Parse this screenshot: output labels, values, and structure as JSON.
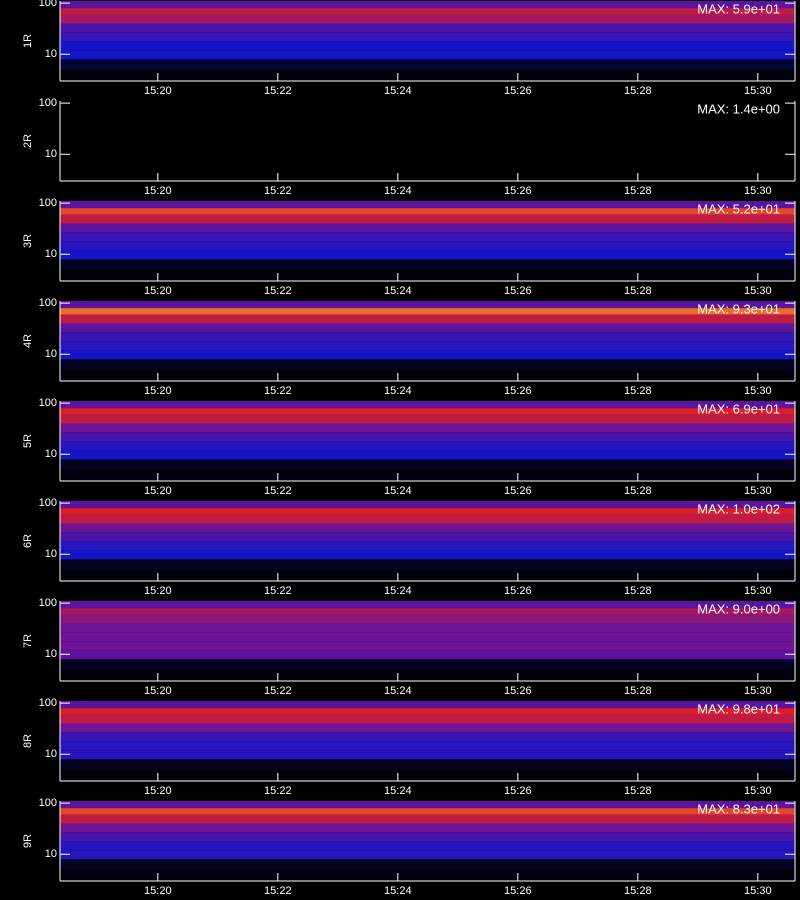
{
  "chart_data": [
    {
      "type": "heatmap",
      "ylabel": "1R",
      "annotation": "MAX: 5.9e+01",
      "log_y": true,
      "xlim": [
        18.37,
        30.62
      ],
      "ylim": [
        3,
        110
      ],
      "xticks": [
        {
          "value": 20,
          "label": "15:20"
        },
        {
          "value": 22,
          "label": "15:22"
        },
        {
          "value": 24,
          "label": "15:24"
        },
        {
          "value": 26,
          "label": "15:26"
        },
        {
          "value": 28,
          "label": "15:28"
        },
        {
          "value": 30,
          "label": "15:30"
        }
      ],
      "yticks": [
        10,
        100
      ],
      "y_bins": [
        3,
        5,
        8,
        12,
        18,
        27,
        40,
        60,
        80,
        110
      ],
      "values": [
        0.02,
        0.08,
        0.3,
        0.3,
        0.4,
        0.45,
        0.65,
        0.7,
        0.5
      ]
    },
    {
      "type": "heatmap",
      "ylabel": "2R",
      "annotation": "MAX: 1.4e+00",
      "log_y": true,
      "xlim": [
        18.37,
        30.62
      ],
      "ylim": [
        3,
        110
      ],
      "xticks": [
        {
          "value": 20,
          "label": "15:20"
        },
        {
          "value": 22,
          "label": "15:22"
        },
        {
          "value": 24,
          "label": "15:24"
        },
        {
          "value": 26,
          "label": "15:26"
        },
        {
          "value": 28,
          "label": "15:28"
        },
        {
          "value": 30,
          "label": "15:30"
        }
      ],
      "yticks": [
        10,
        100
      ],
      "y_bins": [
        3,
        5,
        8,
        12,
        18,
        27,
        40,
        60,
        80,
        110
      ],
      "values": [
        0,
        0,
        0,
        0,
        0,
        0,
        0,
        0,
        0
      ]
    },
    {
      "type": "heatmap",
      "ylabel": "3R",
      "annotation": "MAX: 5.2e+01",
      "log_y": true,
      "xlim": [
        18.37,
        30.62
      ],
      "ylim": [
        3,
        110
      ],
      "xticks": [
        {
          "value": 20,
          "label": "15:20"
        },
        {
          "value": 22,
          "label": "15:22"
        },
        {
          "value": 24,
          "label": "15:24"
        },
        {
          "value": 26,
          "label": "15:26"
        },
        {
          "value": 28,
          "label": "15:28"
        },
        {
          "value": 30,
          "label": "15:30"
        }
      ],
      "yticks": [
        10,
        100
      ],
      "y_bins": [
        3,
        5,
        8,
        12,
        18,
        27,
        40,
        60,
        80,
        110
      ],
      "values": [
        0.02,
        0.05,
        0.3,
        0.35,
        0.4,
        0.5,
        0.7,
        0.8,
        0.5
      ]
    },
    {
      "type": "heatmap",
      "ylabel": "4R",
      "annotation": "MAX: 9.3e+01",
      "log_y": true,
      "xlim": [
        18.37,
        30.62
      ],
      "ylim": [
        3,
        110
      ],
      "xticks": [
        {
          "value": 20,
          "label": "15:20"
        },
        {
          "value": 22,
          "label": "15:22"
        },
        {
          "value": 24,
          "label": "15:24"
        },
        {
          "value": 26,
          "label": "15:26"
        },
        {
          "value": 28,
          "label": "15:28"
        },
        {
          "value": 30,
          "label": "15:30"
        }
      ],
      "yticks": [
        10,
        100
      ],
      "y_bins": [
        3,
        5,
        8,
        12,
        18,
        27,
        40,
        60,
        80,
        110
      ],
      "values": [
        0.02,
        0.05,
        0.3,
        0.35,
        0.4,
        0.5,
        0.7,
        0.85,
        0.5
      ]
    },
    {
      "type": "heatmap",
      "ylabel": "5R",
      "annotation": "MAX: 6.9e+01",
      "log_y": true,
      "xlim": [
        18.37,
        30.62
      ],
      "ylim": [
        3,
        110
      ],
      "xticks": [
        {
          "value": 20,
          "label": "15:20"
        },
        {
          "value": 22,
          "label": "15:22"
        },
        {
          "value": 24,
          "label": "15:24"
        },
        {
          "value": 26,
          "label": "15:26"
        },
        {
          "value": 28,
          "label": "15:28"
        },
        {
          "value": 30,
          "label": "15:30"
        }
      ],
      "yticks": [
        10,
        100
      ],
      "y_bins": [
        3,
        5,
        8,
        12,
        18,
        27,
        40,
        60,
        80,
        110
      ],
      "values": [
        0.02,
        0.05,
        0.3,
        0.35,
        0.45,
        0.55,
        0.7,
        0.75,
        0.5
      ]
    },
    {
      "type": "heatmap",
      "ylabel": "6R",
      "annotation": "MAX: 1.0e+02",
      "log_y": true,
      "xlim": [
        18.37,
        30.62
      ],
      "ylim": [
        3,
        110
      ],
      "xticks": [
        {
          "value": 20,
          "label": "15:20"
        },
        {
          "value": 22,
          "label": "15:22"
        },
        {
          "value": 24,
          "label": "15:24"
        },
        {
          "value": 26,
          "label": "15:26"
        },
        {
          "value": 28,
          "label": "15:28"
        },
        {
          "value": 30,
          "label": "15:30"
        }
      ],
      "yticks": [
        10,
        100
      ],
      "y_bins": [
        3,
        5,
        8,
        12,
        18,
        27,
        40,
        60,
        80,
        110
      ],
      "values": [
        0.02,
        0.05,
        0.3,
        0.35,
        0.45,
        0.55,
        0.7,
        0.75,
        0.5
      ]
    },
    {
      "type": "heatmap",
      "ylabel": "7R",
      "annotation": "MAX: 9.0e+00",
      "log_y": true,
      "xlim": [
        18.37,
        30.62
      ],
      "ylim": [
        3,
        110
      ],
      "xticks": [
        {
          "value": 20,
          "label": "15:20"
        },
        {
          "value": 22,
          "label": "15:22"
        },
        {
          "value": 24,
          "label": "15:24"
        },
        {
          "value": 26,
          "label": "15:26"
        },
        {
          "value": 28,
          "label": "15:28"
        },
        {
          "value": 30,
          "label": "15:30"
        }
      ],
      "yticks": [
        10,
        100
      ],
      "y_bins": [
        3,
        5,
        8,
        12,
        18,
        27,
        40,
        60,
        80,
        110
      ],
      "values": [
        0.02,
        0.05,
        0.5,
        0.55,
        0.55,
        0.55,
        0.6,
        0.65,
        0.5
      ]
    },
    {
      "type": "heatmap",
      "ylabel": "8R",
      "annotation": "MAX: 9.8e+01",
      "log_y": true,
      "xlim": [
        18.37,
        30.62
      ],
      "ylim": [
        3,
        110
      ],
      "xticks": [
        {
          "value": 20,
          "label": "15:20"
        },
        {
          "value": 22,
          "label": "15:22"
        },
        {
          "value": 24,
          "label": "15:24"
        },
        {
          "value": 26,
          "label": "15:26"
        },
        {
          "value": 28,
          "label": "15:28"
        },
        {
          "value": 30,
          "label": "15:30"
        }
      ],
      "yticks": [
        10,
        100
      ],
      "y_bins": [
        3,
        5,
        8,
        12,
        18,
        27,
        40,
        60,
        80,
        110
      ],
      "values": [
        0.02,
        0.05,
        0.35,
        0.35,
        0.4,
        0.55,
        0.7,
        0.75,
        0.5
      ]
    },
    {
      "type": "heatmap",
      "ylabel": "9R",
      "annotation": "MAX: 8.3e+01",
      "log_y": true,
      "xlim": [
        18.37,
        30.62
      ],
      "ylim": [
        3,
        110
      ],
      "xticks": [
        {
          "value": 20,
          "label": "15:20"
        },
        {
          "value": 22,
          "label": "15:22"
        },
        {
          "value": 24,
          "label": "15:24"
        },
        {
          "value": 26,
          "label": "15:26"
        },
        {
          "value": 28,
          "label": "15:28"
        },
        {
          "value": 30,
          "label": "15:30"
        }
      ],
      "yticks": [
        10,
        100
      ],
      "y_bins": [
        3,
        5,
        8,
        12,
        18,
        27,
        40,
        60,
        80,
        110
      ],
      "values": [
        0.02,
        0.05,
        0.35,
        0.35,
        0.45,
        0.55,
        0.7,
        0.8,
        0.5
      ]
    }
  ]
}
